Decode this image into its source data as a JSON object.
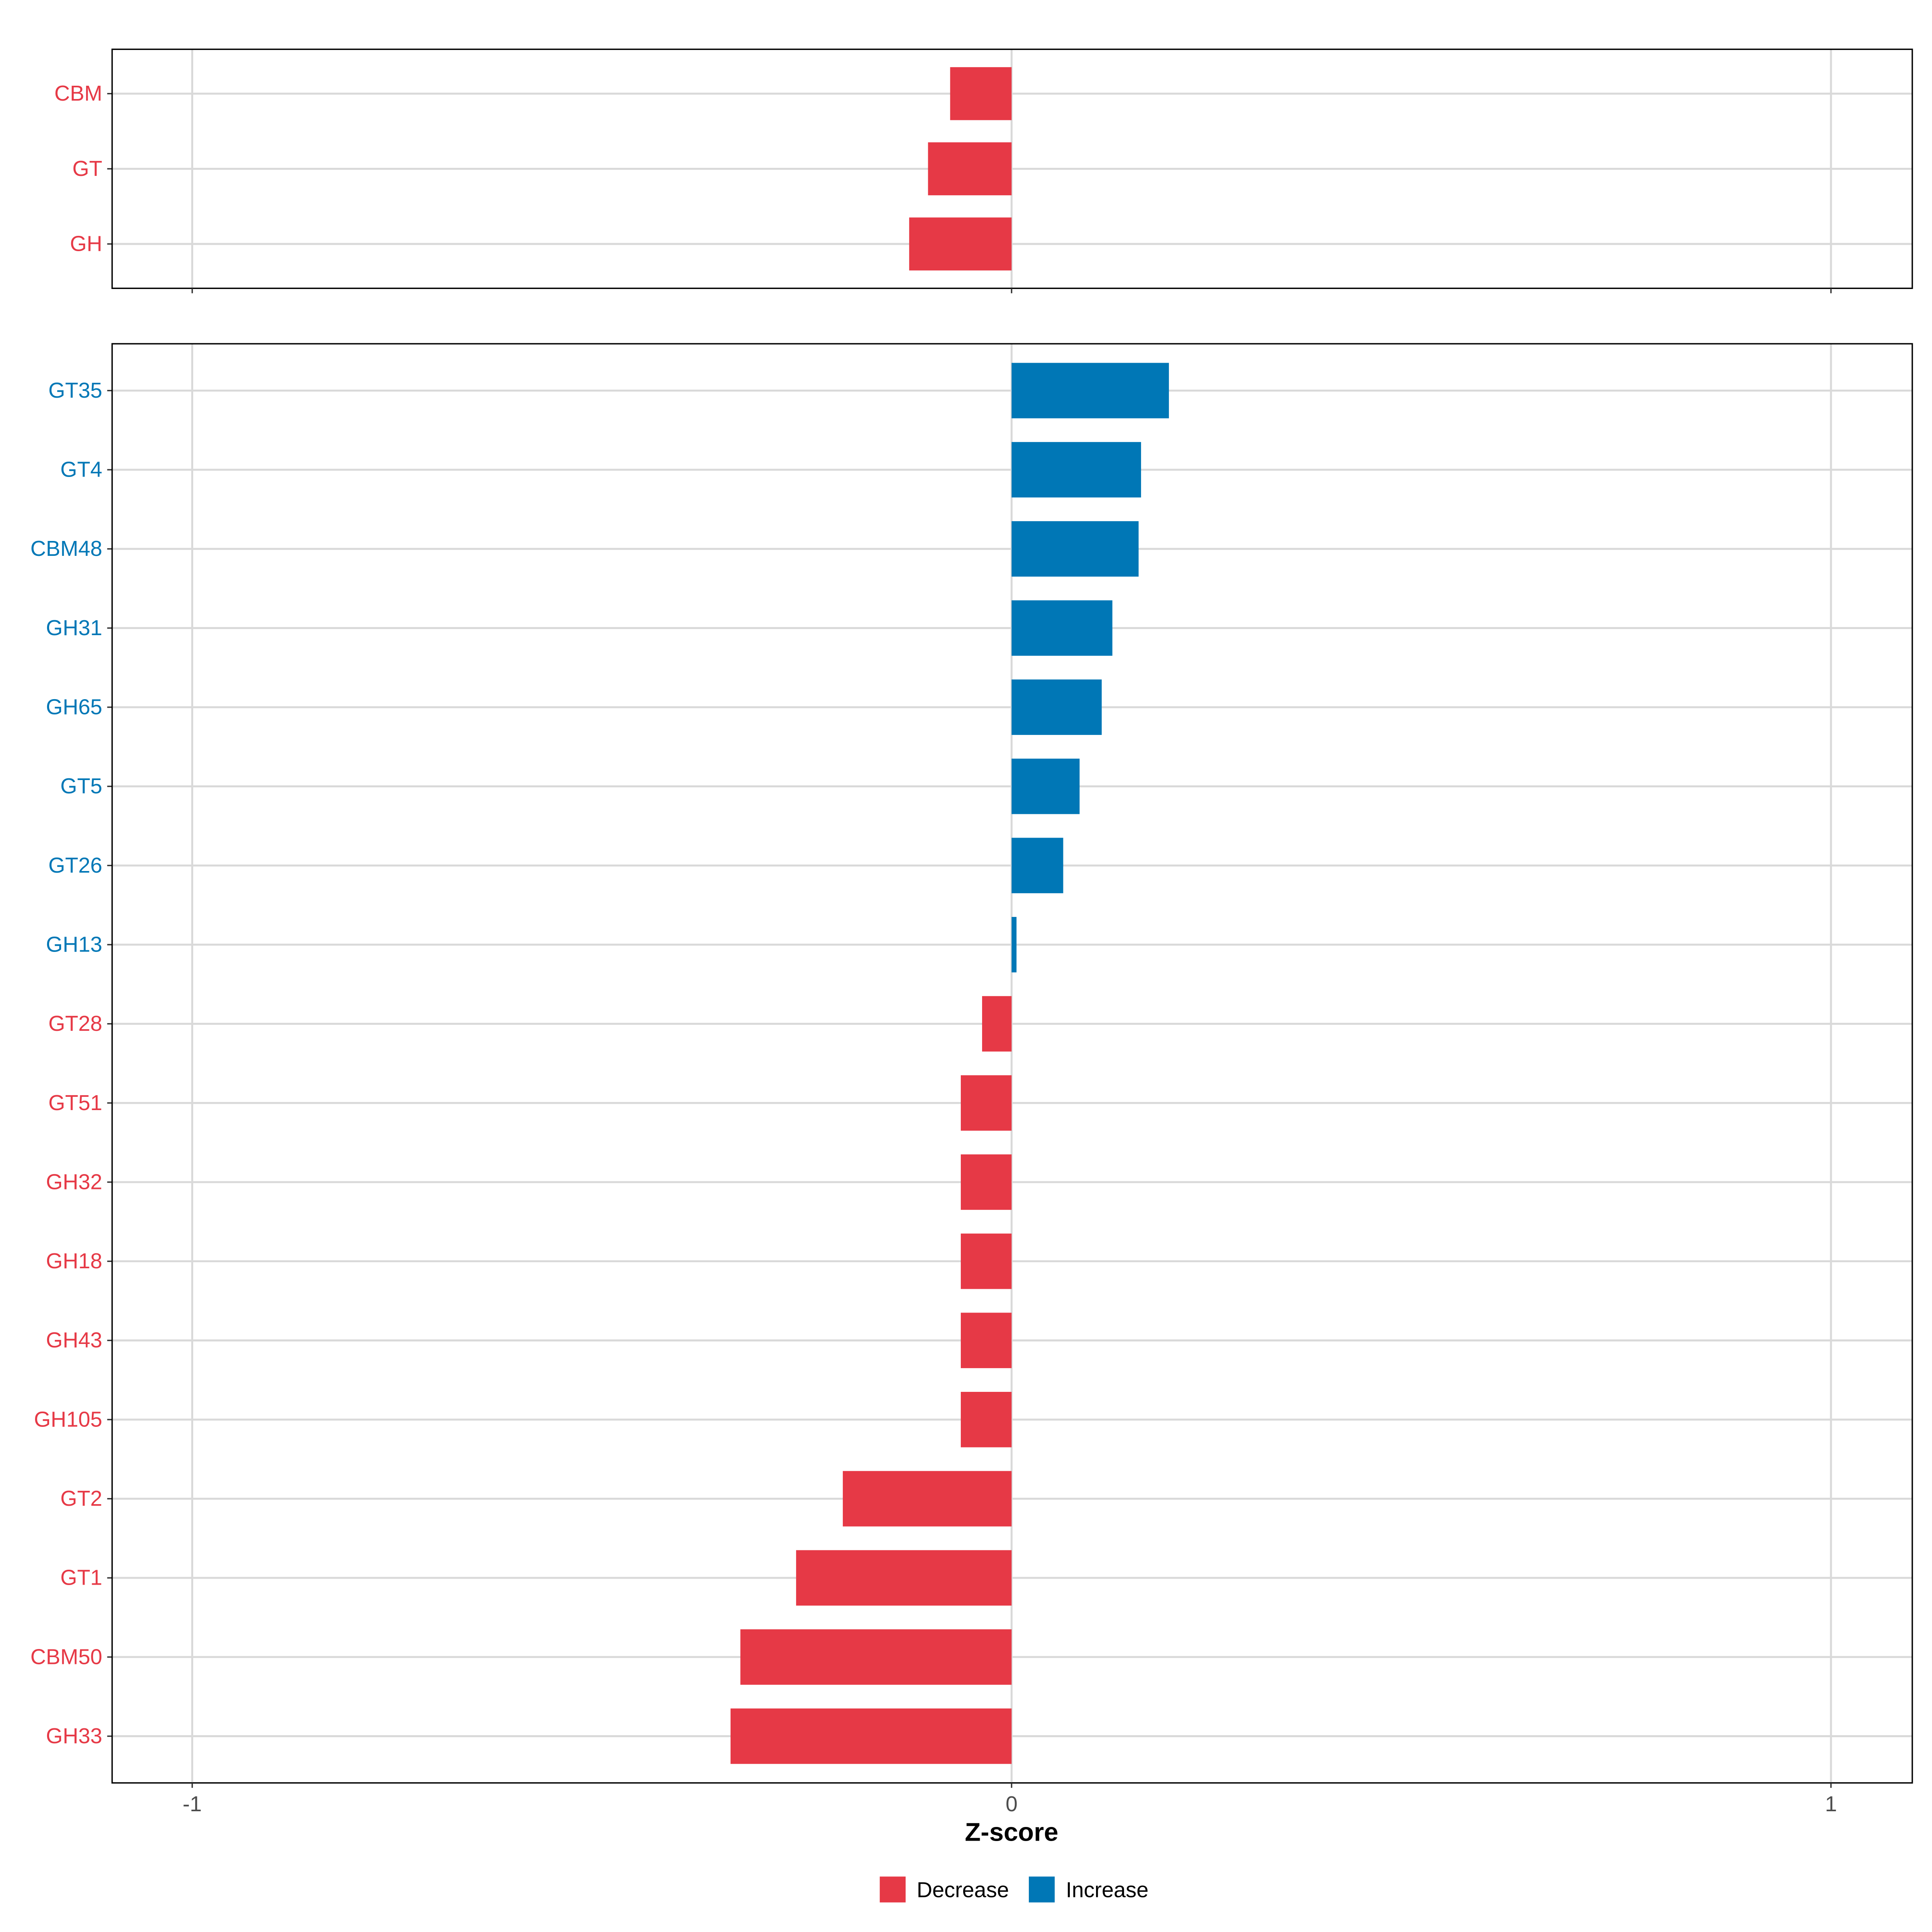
{
  "colors": {
    "Decrease": "#E63946",
    "Increase": "#0077B6"
  },
  "chart_data": {
    "type": "bar",
    "orientation": "horizontal",
    "xlabel": "Z-score",
    "xlim": [
      -1.1,
      1.1
    ],
    "xticks": [
      -1,
      0,
      1
    ],
    "xtick_labels": [
      "-1",
      "0",
      "1"
    ],
    "grid": true,
    "legend": {
      "placement": "bottom",
      "entries": [
        "Decrease",
        "Increase"
      ]
    },
    "panels": [
      {
        "name": "top",
        "categories": [
          "CBM",
          "GT",
          "GH"
        ],
        "values": [
          -0.075,
          -0.102,
          -0.125
        ],
        "groups": [
          "Decrease",
          "Decrease",
          "Decrease"
        ]
      },
      {
        "name": "bottom",
        "categories": [
          "GT35",
          "GT4",
          "CBM48",
          "GH31",
          "GH65",
          "GT5",
          "GT26",
          "GH13",
          "GT28",
          "GT51",
          "GH32",
          "GH18",
          "GH43",
          "GH105",
          "GT2",
          "GT1",
          "CBM50",
          "GH33"
        ],
        "values": [
          0.192,
          0.158,
          0.155,
          0.123,
          0.11,
          0.083,
          0.063,
          0.006,
          -0.036,
          -0.062,
          -0.062,
          -0.062,
          -0.062,
          -0.062,
          -0.206,
          -0.263,
          -0.331,
          -0.343
        ],
        "groups": [
          "Increase",
          "Increase",
          "Increase",
          "Increase",
          "Increase",
          "Increase",
          "Increase",
          "Increase",
          "Decrease",
          "Decrease",
          "Decrease",
          "Decrease",
          "Decrease",
          "Decrease",
          "Decrease",
          "Decrease",
          "Decrease",
          "Decrease"
        ]
      }
    ]
  }
}
